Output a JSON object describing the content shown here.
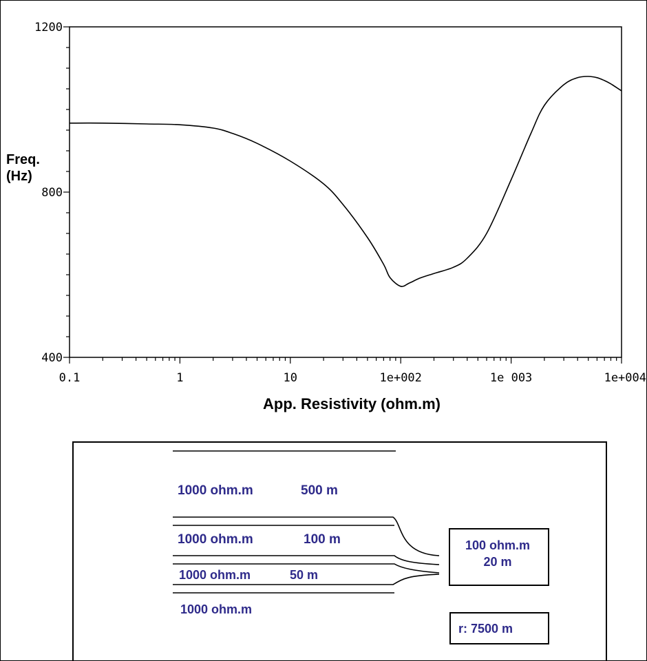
{
  "chart_data": {
    "type": "line",
    "xscale": "log",
    "xlim": [
      0.1,
      10000
    ],
    "ylim": [
      400,
      1200
    ],
    "x_tick_values": [
      0.1,
      1,
      10,
      100,
      1000,
      10000
    ],
    "x_tick_labels": [
      "0.1",
      "1",
      "10",
      "1e+002",
      "1e 003",
      "1e+004"
    ],
    "y_tick_values": [
      400,
      800,
      1200
    ],
    "y_tick_labels": [
      "400",
      "800",
      "1200"
    ],
    "xlabel": "App. Resistivity (ohm.m)",
    "ylabel_lines": [
      "Freq.",
      "(Hz)"
    ],
    "grid": false,
    "series": [
      {
        "x": [
          0.1,
          0.2,
          0.5,
          1,
          2,
          3,
          5,
          10,
          20,
          30,
          50,
          70,
          80,
          100,
          120,
          150,
          200,
          300,
          400,
          600,
          1000,
          1500,
          2000,
          3000,
          4000,
          5000,
          6000,
          7000,
          8000,
          10000
        ],
        "y": [
          967,
          967,
          965,
          963,
          955,
          942,
          918,
          875,
          820,
          770,
          690,
          625,
          593,
          572,
          580,
          592,
          603,
          618,
          640,
          700,
          830,
          940,
          1010,
          1060,
          1077,
          1080,
          1077,
          1070,
          1062,
          1045
        ]
      }
    ]
  },
  "model": {
    "layer1_resistivity": "1000 ohm.m",
    "layer1_thickness": "500 m",
    "layer2_resistivity": "1000 ohm.m",
    "layer2_thickness": "100 m",
    "layer3_resistivity": "1000 ohm.m",
    "layer3_thickness": "50 m",
    "layer4_resistivity": "1000 ohm.m",
    "target_resistivity": "100 ohm.m",
    "target_thickness": "20 m",
    "distance": "r:  7500 m"
  }
}
